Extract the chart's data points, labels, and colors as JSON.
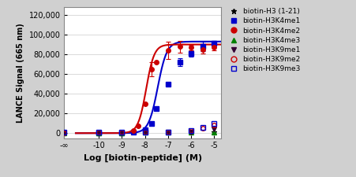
{
  "title": "",
  "xlabel": "Log [biotin-peptide] (M)",
  "ylabel": "LANCE Signal (665 nm)",
  "xlim": [
    -11.5,
    -4.7
  ],
  "ylim": [
    -5000,
    128000
  ],
  "yticks": [
    0,
    20000,
    40000,
    60000,
    80000,
    100000,
    120000
  ],
  "xtick_labels": [
    "-∞",
    "-10",
    "-9",
    "-8",
    "-7",
    "-6",
    "-5"
  ],
  "xtick_vals": [
    -11.5,
    -10,
    -9,
    -8,
    -7,
    -6,
    -5
  ],
  "bg_color": "#d0d0d0",
  "plot_bg_color": "#ffffff",
  "series": [
    {
      "label": "biotin-H3 (1-21)",
      "color": "black",
      "marker": "*",
      "fillstyle": "full",
      "x_data": [
        -11.5,
        -10,
        -9,
        -8,
        -7,
        -6,
        -5
      ],
      "y_data": [
        500,
        600,
        500,
        600,
        700,
        800,
        900
      ],
      "yerr": [
        null,
        null,
        null,
        null,
        null,
        null,
        null
      ],
      "fit": false
    },
    {
      "label": "biotin-H3K4me1",
      "color": "#0000cc",
      "marker": "s",
      "fillstyle": "full",
      "x_data": [
        -10,
        -9,
        -8.5,
        -8,
        -7.7,
        -7.5,
        -7,
        -6.5,
        -6,
        -5.5,
        -5
      ],
      "y_data": [
        500,
        500,
        800,
        3500,
        10000,
        25000,
        50000,
        72000,
        81000,
        88000,
        91000
      ],
      "yerr": [
        null,
        null,
        null,
        null,
        null,
        null,
        null,
        4000,
        3000,
        5000,
        3000
      ],
      "fit": true,
      "top": 93000,
      "bottom": 0,
      "ec50": -7.45,
      "hill": 2.2
    },
    {
      "label": "biotin-H3K4me2",
      "color": "#cc0000",
      "marker": "o",
      "fillstyle": "full",
      "x_data": [
        -10,
        -9,
        -8.5,
        -8.3,
        -8,
        -7.7,
        -7.5,
        -7,
        -6.5,
        -6,
        -5.5,
        -5
      ],
      "y_data": [
        500,
        800,
        2500,
        7000,
        30000,
        65000,
        72000,
        84000,
        88000,
        87000,
        85000,
        87000
      ],
      "yerr": [
        null,
        null,
        null,
        null,
        null,
        7000,
        null,
        9000,
        6000,
        3000,
        4000,
        3000
      ],
      "fit": true,
      "top": 90000,
      "bottom": 0,
      "ec50": -7.95,
      "hill": 2.5
    },
    {
      "label": "biotin-H3K4me3",
      "color": "#008000",
      "marker": "^",
      "fillstyle": "full",
      "x_data": [
        -11.5,
        -10,
        -9,
        -8,
        -7,
        -6,
        -5
      ],
      "y_data": [
        500,
        500,
        500,
        600,
        700,
        900,
        1200
      ],
      "yerr": [
        null,
        null,
        null,
        null,
        null,
        null,
        null
      ],
      "fit": false
    },
    {
      "label": "biotin-H3K9me1",
      "color": "#330033",
      "marker": "v",
      "fillstyle": "full",
      "x_data": [
        -11.5,
        -10,
        -9,
        -8,
        -7,
        -6,
        -5
      ],
      "y_data": [
        500,
        500,
        500,
        600,
        800,
        1200,
        4000
      ],
      "yerr": [
        null,
        null,
        null,
        null,
        null,
        null,
        null
      ],
      "fit": false
    },
    {
      "label": "biotin-H3K9me2",
      "color": "#cc0000",
      "marker": "o",
      "fillstyle": "none",
      "x_data": [
        -11.5,
        -10,
        -9,
        -8,
        -7,
        -6,
        -5.5,
        -5
      ],
      "y_data": [
        500,
        600,
        600,
        700,
        1000,
        2500,
        5000,
        8000
      ],
      "yerr": [
        null,
        null,
        null,
        null,
        null,
        null,
        null,
        null
      ],
      "fit": false
    },
    {
      "label": "biotin-H3K9me3",
      "color": "#0000cc",
      "marker": "s",
      "fillstyle": "none",
      "x_data": [
        -11.5,
        -10,
        -9,
        -8,
        -7,
        -6,
        -5.5,
        -5
      ],
      "y_data": [
        1200,
        1000,
        900,
        1000,
        1200,
        2500,
        5500,
        9500
      ],
      "yerr": [
        null,
        null,
        null,
        null,
        null,
        null,
        null,
        null
      ],
      "fit": false
    }
  ],
  "legend_marker_colors": [
    "black",
    "#0000cc",
    "#cc0000",
    "#008000",
    "#330033",
    "#cc0000",
    "#0000cc"
  ],
  "legend_markers": [
    "*",
    "s",
    "o",
    "^",
    "v",
    "o",
    "s"
  ],
  "legend_fillstyles": [
    "full",
    "full",
    "full",
    "full",
    "full",
    "none",
    "none"
  ],
  "legend_labels": [
    "biotin-H3 (1-21)",
    "biotin-H3K4me1",
    "biotin-H3K4me2",
    "biotin-H3K4me3",
    "biotin-H3K9me1",
    "biotin-H3K9me2",
    "biotin-H3K9me3"
  ]
}
